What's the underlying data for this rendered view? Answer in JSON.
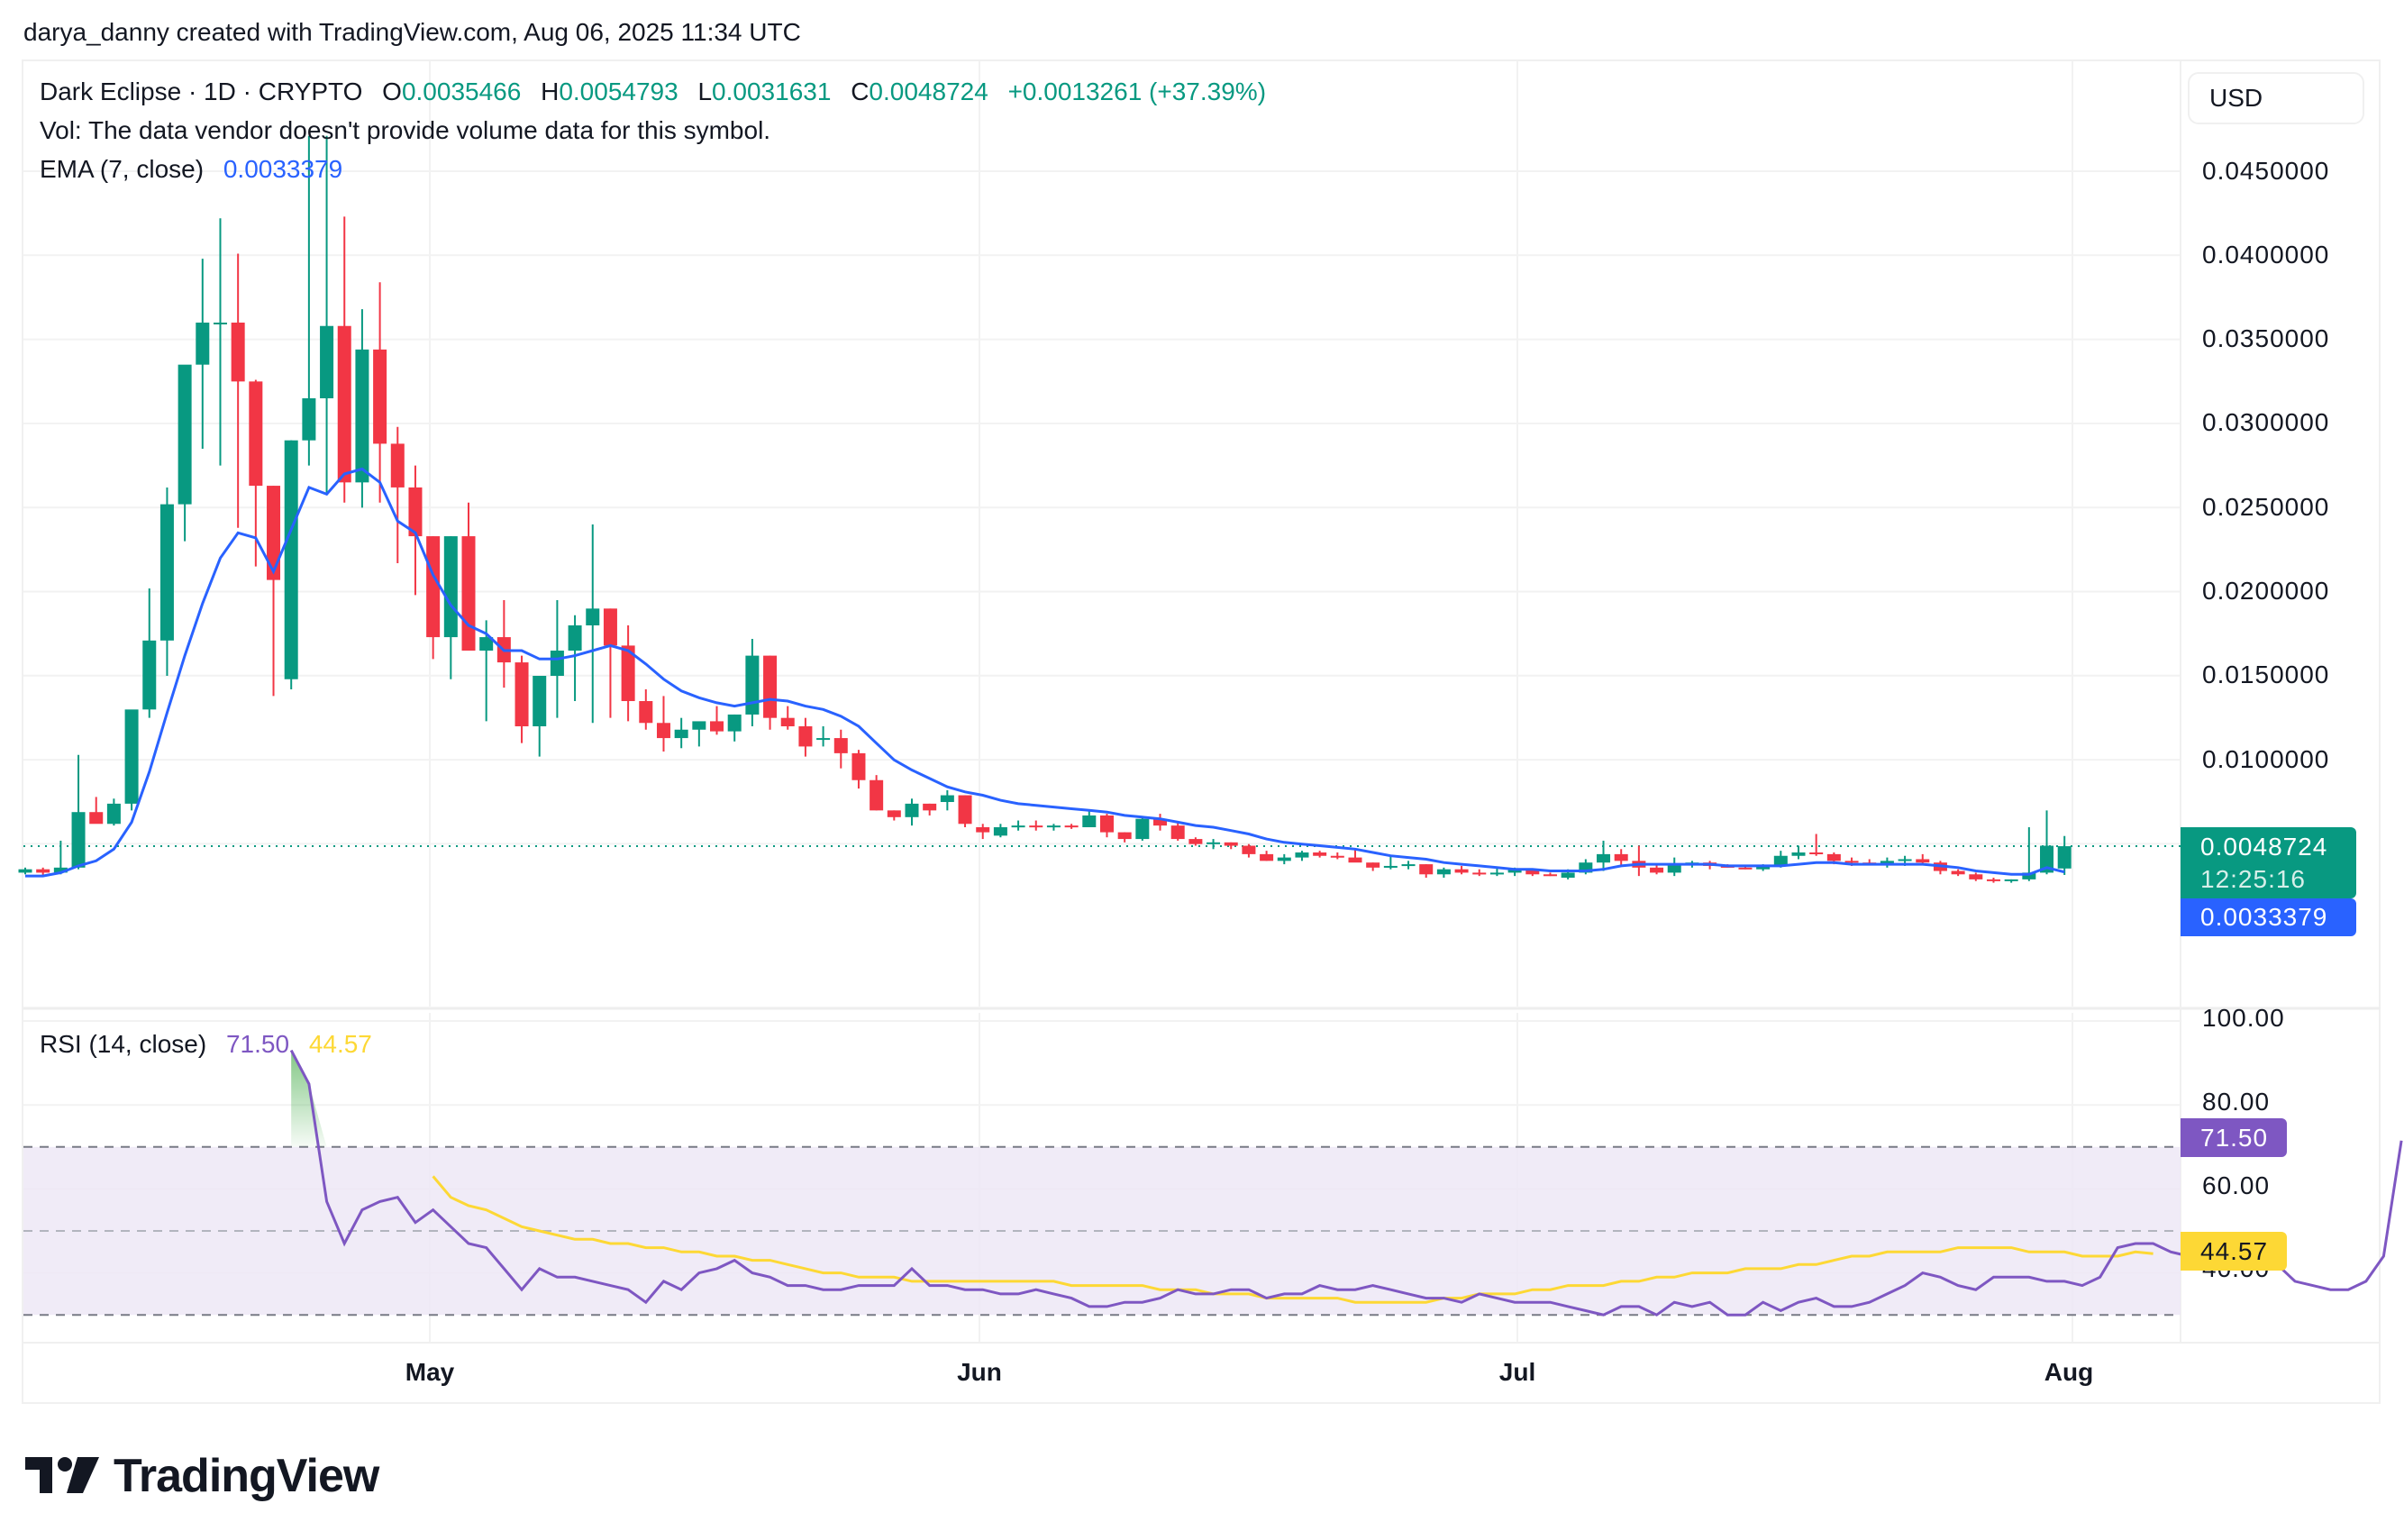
{
  "credit": "darya_danny created with TradingView.com, Aug 06, 2025 11:34 UTC",
  "header": {
    "symbol": "Dark Eclipse · 1D · CRYPTO",
    "o_label": "O",
    "o_value": "0.0035466",
    "h_label": "H",
    "h_value": "0.0054793",
    "l_label": "L",
    "l_value": "0.0031631",
    "c_label": "C",
    "c_value": "0.0048724",
    "change": "+0.0013261 (+37.39%)",
    "vol_text": "Vol: The data vendor doesn't provide volume data for this symbol.",
    "ema_label": "EMA (7, close)",
    "ema_value": "0.0033379"
  },
  "currency_button": "USD",
  "price_axis": {
    "ticks": [
      "0.0450000",
      "0.0400000",
      "0.0350000",
      "0.0300000",
      "0.0250000",
      "0.0200000",
      "0.0150000",
      "0.0100000"
    ],
    "last_price_tag": "0.0048724",
    "countdown": "12:25:16",
    "ema_tag": "0.0033379"
  },
  "rsi": {
    "label": "RSI (14, close)",
    "value": "71.50",
    "ma_value": "44.57",
    "ticks": [
      "100.00",
      "80.00",
      "60.00",
      "40.00"
    ],
    "value_tag": "71.50",
    "ma_tag": "44.57"
  },
  "time_axis": {
    "labels": [
      "May",
      "Jun",
      "Jul",
      "Aug"
    ]
  },
  "branding": {
    "logo_text": "TradingView"
  },
  "colors": {
    "up": "#089981",
    "down": "#f23645",
    "ema": "#2962ff",
    "rsi": "#7e57c2",
    "rsi_ma": "#fdd835",
    "rsi_band": "#ede7f6"
  },
  "chart_data": [
    {
      "type": "candlestick",
      "title": "Dark Eclipse · 1D · CRYPTO",
      "ylabel": "USD",
      "ylim": [
        0.0,
        0.0475
      ],
      "x_start": "2025-04-08",
      "x_labels": {
        "May": 23,
        "Jun": 54,
        "Jul": 84,
        "Aug": 115
      },
      "candles": [
        [
          0.0033,
          0.0036,
          0.0032,
          0.0035
        ],
        [
          0.0035,
          0.0036,
          0.0031,
          0.0033
        ],
        [
          0.0033,
          0.0052,
          0.0032,
          0.0036
        ],
        [
          0.0036,
          0.0103,
          0.0035,
          0.0069
        ],
        [
          0.0069,
          0.0078,
          0.0064,
          0.0062
        ],
        [
          0.0062,
          0.0077,
          0.0061,
          0.0074
        ],
        [
          0.0074,
          0.0127,
          0.007,
          0.013
        ],
        [
          0.013,
          0.0202,
          0.0125,
          0.0171
        ],
        [
          0.0171,
          0.0262,
          0.015,
          0.0252
        ],
        [
          0.0252,
          0.0324,
          0.023,
          0.0335
        ],
        [
          0.0335,
          0.0398,
          0.0285,
          0.036
        ],
        [
          0.036,
          0.0422,
          0.0275,
          0.036
        ],
        [
          0.036,
          0.0401,
          0.0238,
          0.0325
        ],
        [
          0.0325,
          0.0326,
          0.0215,
          0.0263
        ],
        [
          0.0263,
          0.0263,
          0.0138,
          0.0207
        ],
        [
          0.0148,
          0.029,
          0.0142,
          0.029
        ],
        [
          0.029,
          0.0471,
          0.0275,
          0.0315
        ],
        [
          0.0315,
          0.0471,
          0.0258,
          0.0358
        ],
        [
          0.0358,
          0.0423,
          0.0253,
          0.0265
        ],
        [
          0.0265,
          0.0368,
          0.025,
          0.0344
        ],
        [
          0.0344,
          0.0384,
          0.0253,
          0.0288
        ],
        [
          0.0288,
          0.0298,
          0.0217,
          0.0262
        ],
        [
          0.0262,
          0.0275,
          0.0198,
          0.0233
        ],
        [
          0.0233,
          0.0233,
          0.016,
          0.0173
        ],
        [
          0.0173,
          0.0233,
          0.0148,
          0.0233
        ],
        [
          0.0233,
          0.0253,
          0.018,
          0.0165
        ],
        [
          0.0165,
          0.0183,
          0.0123,
          0.0173
        ],
        [
          0.0173,
          0.0195,
          0.0143,
          0.0158
        ],
        [
          0.0158,
          0.0162,
          0.011,
          0.012
        ],
        [
          0.012,
          0.0132,
          0.0102,
          0.015
        ],
        [
          0.015,
          0.0195,
          0.0125,
          0.0165
        ],
        [
          0.0165,
          0.0186,
          0.0135,
          0.018
        ],
        [
          0.018,
          0.024,
          0.0122,
          0.019
        ],
        [
          0.019,
          0.019,
          0.0125,
          0.0168
        ],
        [
          0.0168,
          0.018,
          0.0123,
          0.0135
        ],
        [
          0.0135,
          0.0142,
          0.0118,
          0.0122
        ],
        [
          0.0122,
          0.0138,
          0.0105,
          0.0113
        ],
        [
          0.0113,
          0.0125,
          0.0107,
          0.0118
        ],
        [
          0.0118,
          0.0122,
          0.0108,
          0.0123
        ],
        [
          0.0123,
          0.0132,
          0.0115,
          0.0117
        ],
        [
          0.0117,
          0.0127,
          0.0111,
          0.0127
        ],
        [
          0.0127,
          0.0172,
          0.012,
          0.0162
        ],
        [
          0.0162,
          0.0162,
          0.0118,
          0.0125
        ],
        [
          0.0125,
          0.0132,
          0.0118,
          0.012
        ],
        [
          0.012,
          0.0125,
          0.0102,
          0.0108
        ],
        [
          0.0112,
          0.012,
          0.0108,
          0.0113
        ],
        [
          0.0113,
          0.0118,
          0.0095,
          0.0104
        ],
        [
          0.0104,
          0.0106,
          0.0083,
          0.0088
        ],
        [
          0.0088,
          0.0091,
          0.007,
          0.007
        ],
        [
          0.007,
          0.007,
          0.0064,
          0.0066
        ],
        [
          0.0066,
          0.0077,
          0.0061,
          0.0074
        ],
        [
          0.0074,
          0.0074,
          0.0067,
          0.007
        ],
        [
          0.0075,
          0.0082,
          0.007,
          0.0079
        ],
        [
          0.0079,
          0.0079,
          0.006,
          0.0062
        ],
        [
          0.006,
          0.0062,
          0.0053,
          0.0057
        ],
        [
          0.0055,
          0.0062,
          0.0054,
          0.006
        ],
        [
          0.006,
          0.0064,
          0.0058,
          0.0061
        ],
        [
          0.0061,
          0.0064,
          0.0058,
          0.006
        ],
        [
          0.006,
          0.0062,
          0.0058,
          0.0061
        ],
        [
          0.0061,
          0.0062,
          0.0059,
          0.006
        ],
        [
          0.006,
          0.007,
          0.006,
          0.0067
        ],
        [
          0.0067,
          0.0068,
          0.0054,
          0.0057
        ],
        [
          0.0057,
          0.0057,
          0.0051,
          0.0053
        ],
        [
          0.0053,
          0.0066,
          0.0052,
          0.0065
        ],
        [
          0.0065,
          0.0068,
          0.0058,
          0.0061
        ],
        [
          0.0061,
          0.0063,
          0.0052,
          0.0053
        ],
        [
          0.0053,
          0.0054,
          0.0049,
          0.005
        ],
        [
          0.005,
          0.0053,
          0.0047,
          0.0051
        ],
        [
          0.0051,
          0.0051,
          0.0047,
          0.0049
        ],
        [
          0.0049,
          0.005,
          0.0042,
          0.0044
        ],
        [
          0.0044,
          0.0046,
          0.004,
          0.004
        ],
        [
          0.004,
          0.0044,
          0.0038,
          0.0042
        ],
        [
          0.0042,
          0.0046,
          0.004,
          0.0045
        ],
        [
          0.0045,
          0.0046,
          0.0042,
          0.0043
        ],
        [
          0.0043,
          0.0045,
          0.0041,
          0.0042
        ],
        [
          0.0042,
          0.0047,
          0.004,
          0.0039
        ],
        [
          0.0039,
          0.0039,
          0.0034,
          0.0036
        ],
        [
          0.0036,
          0.0043,
          0.0035,
          0.0037
        ],
        [
          0.0037,
          0.004,
          0.0035,
          0.0038
        ],
        [
          0.0038,
          0.0038,
          0.003,
          0.0032
        ],
        [
          0.0032,
          0.0036,
          0.003,
          0.0035
        ],
        [
          0.0035,
          0.0037,
          0.0032,
          0.0033
        ],
        [
          0.0033,
          0.0035,
          0.0031,
          0.0032
        ],
        [
          0.0032,
          0.0036,
          0.0031,
          0.0033
        ],
        [
          0.0033,
          0.0036,
          0.0031,
          0.0035
        ],
        [
          0.0035,
          0.0035,
          0.0031,
          0.0032
        ],
        [
          0.0032,
          0.0033,
          0.0031,
          0.0031
        ],
        [
          0.003,
          0.0035,
          0.0029,
          0.0033
        ],
        [
          0.0033,
          0.0041,
          0.0032,
          0.0039
        ],
        [
          0.0039,
          0.0052,
          0.0034,
          0.0044
        ],
        [
          0.0044,
          0.0047,
          0.0037,
          0.004
        ],
        [
          0.004,
          0.0049,
          0.0031,
          0.0036
        ],
        [
          0.0036,
          0.0038,
          0.0032,
          0.0033
        ],
        [
          0.0033,
          0.0042,
          0.0031,
          0.0038
        ],
        [
          0.0038,
          0.004,
          0.0036,
          0.0039
        ],
        [
          0.0039,
          0.004,
          0.0035,
          0.0037
        ],
        [
          0.0037,
          0.0038,
          0.0036,
          0.0036
        ],
        [
          0.0036,
          0.0037,
          0.0035,
          0.0035
        ],
        [
          0.0035,
          0.0038,
          0.0034,
          0.0037
        ],
        [
          0.0037,
          0.0046,
          0.0036,
          0.0043
        ],
        [
          0.0043,
          0.0049,
          0.0041,
          0.0045
        ],
        [
          0.0045,
          0.0056,
          0.0043,
          0.0044
        ],
        [
          0.0044,
          0.0045,
          0.0038,
          0.004
        ],
        [
          0.004,
          0.0042,
          0.0037,
          0.0039
        ],
        [
          0.0039,
          0.0041,
          0.0038,
          0.0038
        ],
        [
          0.0038,
          0.0042,
          0.0036,
          0.004
        ],
        [
          0.004,
          0.0043,
          0.0037,
          0.0041
        ],
        [
          0.0041,
          0.0044,
          0.0038,
          0.0039
        ],
        [
          0.0039,
          0.004,
          0.0032,
          0.0034
        ],
        [
          0.0034,
          0.0035,
          0.0031,
          0.0032
        ],
        [
          0.0032,
          0.0033,
          0.0028,
          0.0029
        ],
        [
          0.0029,
          0.003,
          0.0027,
          0.0028
        ],
        [
          0.0028,
          0.0029,
          0.0027,
          0.0029
        ],
        [
          0.0029,
          0.006,
          0.0028,
          0.0033
        ],
        [
          0.0033,
          0.007,
          0.0032,
          0.0049
        ],
        [
          0.0035466,
          0.0054793,
          0.0031631,
          0.0048724
        ]
      ],
      "ema7": [
        0.0031,
        0.0031,
        0.0033,
        0.0037,
        0.004,
        0.0047,
        0.0063,
        0.0093,
        0.0128,
        0.0162,
        0.0193,
        0.022,
        0.0235,
        0.0232,
        0.0212,
        0.0237,
        0.0262,
        0.0258,
        0.027,
        0.0273,
        0.0265,
        0.0242,
        0.0235,
        0.021,
        0.0192,
        0.018,
        0.0175,
        0.0165,
        0.0165,
        0.016,
        0.016,
        0.0162,
        0.0165,
        0.0168,
        0.0165,
        0.0157,
        0.0148,
        0.0141,
        0.0137,
        0.0134,
        0.0132,
        0.0134,
        0.0136,
        0.0135,
        0.0132,
        0.013,
        0.0126,
        0.012,
        0.011,
        0.01,
        0.0094,
        0.0089,
        0.0084,
        0.0081,
        0.0079,
        0.0076,
        0.0074,
        0.0073,
        0.0072,
        0.0071,
        0.007,
        0.0069,
        0.0067,
        0.0066,
        0.0065,
        0.0063,
        0.0061,
        0.006,
        0.0058,
        0.0056,
        0.0053,
        0.0051,
        0.005,
        0.0049,
        0.0048,
        0.0047,
        0.0045,
        0.0043,
        0.0042,
        0.0041,
        0.0039,
        0.0038,
        0.0037,
        0.0036,
        0.0035,
        0.0035,
        0.0034,
        0.0034,
        0.0034,
        0.0035,
        0.0037,
        0.0038,
        0.0038,
        0.0038,
        0.0038,
        0.0038,
        0.0037,
        0.0037,
        0.0037,
        0.0037,
        0.0038,
        0.0039,
        0.0039,
        0.0038,
        0.0038,
        0.0038,
        0.0038,
        0.0038,
        0.0037,
        0.0036,
        0.0034,
        0.0033,
        0.0032,
        0.0032,
        0.0036,
        0.0033379
      ]
    },
    {
      "type": "line",
      "title": "RSI (14, close)",
      "ylim": [
        20,
        100
      ],
      "yticks": [
        100,
        80,
        60,
        40
      ],
      "bands": {
        "upper": 70,
        "middle": 50,
        "lower": 30
      },
      "rsi_start_index": 15,
      "rsi": [
        93,
        85,
        57,
        47,
        55,
        57,
        58,
        52,
        55,
        51,
        47,
        46,
        41,
        36,
        41,
        39,
        39,
        38,
        37,
        36,
        33,
        38,
        36,
        40,
        41,
        43,
        40,
        39,
        37,
        37,
        36,
        36,
        37,
        37,
        37,
        41,
        37,
        37,
        36,
        36,
        35,
        35,
        36,
        35,
        34,
        32,
        32,
        33,
        33,
        34,
        36,
        35,
        35,
        36,
        36,
        34,
        35,
        35,
        37,
        36,
        36,
        37,
        36,
        35,
        34,
        34,
        33,
        35,
        34,
        33,
        33,
        33,
        32,
        31,
        30,
        32,
        32,
        30,
        33,
        32,
        33,
        30,
        30,
        33,
        31,
        33,
        34,
        32,
        32,
        33,
        35,
        37,
        40,
        39,
        37,
        36,
        39,
        39,
        39,
        38,
        38,
        37,
        39,
        46,
        47,
        47,
        45,
        44,
        43,
        44,
        45,
        46,
        42,
        38,
        37,
        36,
        36,
        38,
        44,
        71.5
      ],
      "rsi_ma_start_index": 23,
      "rsi_ma": [
        63,
        58,
        56,
        55,
        53,
        51,
        50,
        49,
        48,
        48,
        47,
        47,
        46,
        46,
        45,
        45,
        44,
        44,
        43,
        43,
        42,
        41,
        40,
        40,
        39,
        39,
        39,
        38,
        38,
        38,
        38,
        38,
        38,
        38,
        38,
        38,
        37,
        37,
        37,
        37,
        37,
        36,
        36,
        36,
        35,
        35,
        35,
        34,
        34,
        34,
        34,
        34,
        33,
        33,
        33,
        33,
        33,
        34,
        34,
        35,
        35,
        35,
        36,
        36,
        37,
        37,
        37,
        38,
        38,
        39,
        39,
        40,
        40,
        40,
        41,
        41,
        41,
        42,
        42,
        43,
        44,
        44,
        45,
        45,
        45,
        45,
        46,
        46,
        46,
        46,
        45,
        45,
        45,
        44,
        44,
        44,
        45,
        44.57
      ]
    }
  ]
}
